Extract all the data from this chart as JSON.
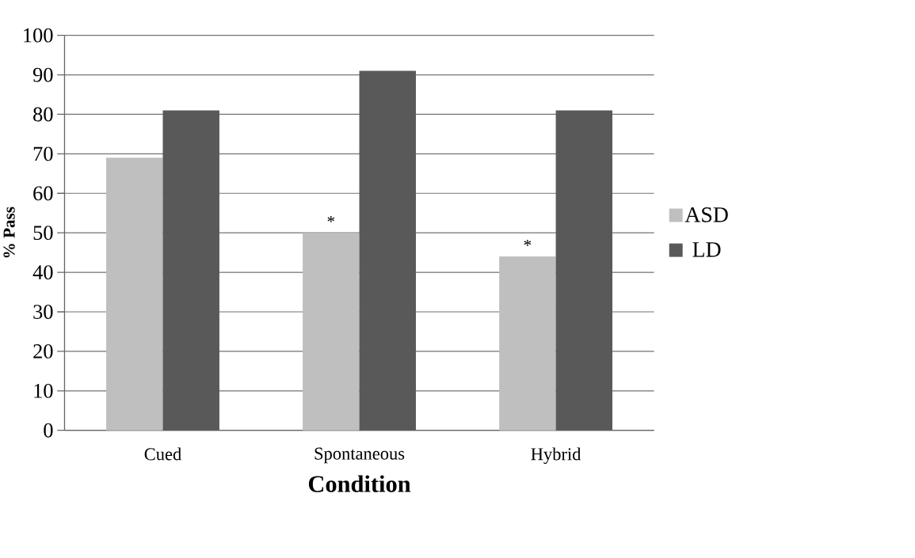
{
  "chart_data": {
    "type": "bar",
    "categories": [
      "Cued",
      "Spontaneous",
      "Hybrid"
    ],
    "series": [
      {
        "name": "ASD",
        "color": "#bfbfbf",
        "values": [
          69,
          50,
          44
        ]
      },
      {
        "name": "LD",
        "color": "#595959",
        "values": [
          81,
          91,
          81
        ]
      }
    ],
    "xlabel": "Condition",
    "ylabel": "% Pass",
    "ylim": [
      0,
      100
    ],
    "yticks": [
      0,
      10,
      20,
      30,
      40,
      50,
      60,
      70,
      80,
      90,
      100
    ],
    "grid": "y",
    "legend": "right",
    "annotations": [
      {
        "text": "*",
        "x": "Spontaneous",
        "y": 50
      },
      {
        "text": "*",
        "x": "Hybrid",
        "y": 44
      }
    ]
  }
}
